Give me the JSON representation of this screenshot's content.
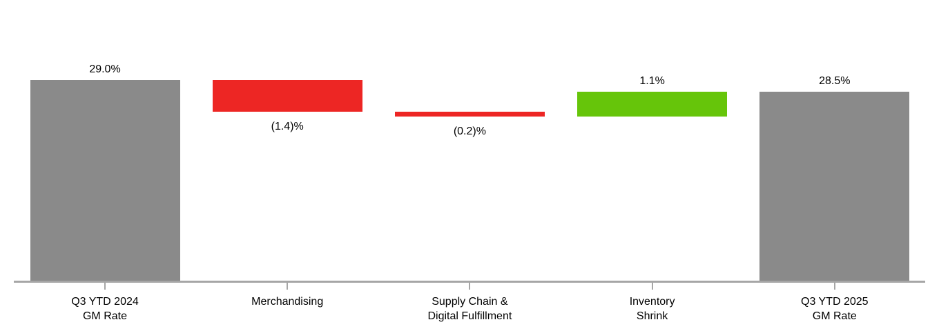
{
  "page": {
    "background": "#FFFFFF"
  },
  "chart_data": {
    "type": "bar",
    "subtype": "waterfall",
    "title": "",
    "xlabel": "",
    "ylabel": "",
    "unit": "%",
    "grid": false,
    "legend_position": "none",
    "axis_color": "#A6A6A6",
    "text_color": "#000000",
    "colors": {
      "total": "#8A8A8A",
      "decrease": "#ED2624",
      "increase": "#66C50A"
    },
    "categories": [
      "Q3 YTD 2024\nGM Rate",
      "Merchandising",
      "Supply Chain &\nDigital Fulfillment",
      "Inventory\nShrink",
      "Q3 YTD 2025\nGM Rate"
    ],
    "steps": [
      {
        "category": "Q3 YTD 2024\nGM Rate",
        "role": "total",
        "value": 29.0,
        "label": "29.0%",
        "label_position": "above",
        "color": "#8A8A8A"
      },
      {
        "category": "Merchandising",
        "role": "delta",
        "value": -1.4,
        "label": "(1.4)%",
        "label_position": "below",
        "color": "#ED2624"
      },
      {
        "category": "Supply Chain &\nDigital Fulfillment",
        "role": "delta",
        "value": -0.2,
        "label": "(0.2)%",
        "label_position": "below",
        "color": "#ED2624"
      },
      {
        "category": "Inventory\nShrink",
        "role": "delta",
        "value": 1.1,
        "label": "1.1%",
        "label_position": "above",
        "color": "#66C50A"
      },
      {
        "category": "Q3 YTD 2025\nGM Rate",
        "role": "total",
        "value": 28.5,
        "label": "28.5%",
        "label_position": "above",
        "color": "#8A8A8A"
      }
    ]
  }
}
